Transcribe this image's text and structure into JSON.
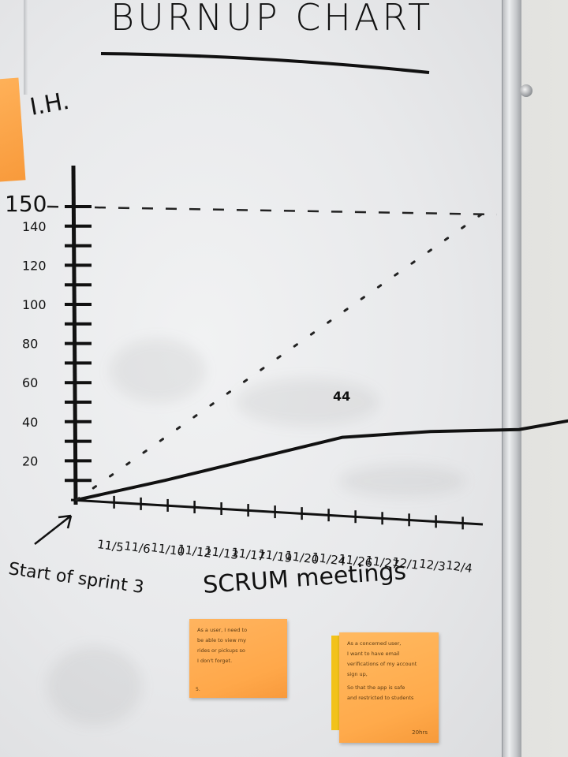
{
  "chart_data": {
    "type": "line",
    "title": "BURNUP CHART",
    "ylabel": "I.H.",
    "xlabel": "SCRUM meetings",
    "y_ticks": [
      "20",
      "40",
      "60",
      "80",
      "100",
      "120",
      "140",
      "150"
    ],
    "x_ticks": [
      "11/5",
      "11/6",
      "11/10",
      "11/12",
      "11/13",
      "11/17",
      "11/19",
      "11/20",
      "11/24",
      "11/26",
      "11/27",
      "12/1",
      "12/3",
      "12/4"
    ],
    "ylim": [
      0,
      150
    ],
    "scope_line": 150,
    "series": [
      {
        "name": "",
        "style": "solid",
        "x": [
          0,
          1,
          2,
          3,
          4,
          5,
          6,
          7,
          8,
          9
        ],
        "y": [
          0,
          10,
          21,
          32,
          35,
          36,
          44,
          44,
          42,
          44
        ]
      },
      {
        "name": "",
        "style": "dotted",
        "x": [
          0,
          13.5
        ],
        "y": [
          0,
          150
        ]
      }
    ],
    "end_label": "44"
  },
  "annotation": "Start of sprint 3",
  "stickies": [
    {
      "lines": [
        "As a user, I need to",
        "be able to view my",
        "rides or pickups so",
        "I don't forget."
      ],
      "footer": "5."
    },
    {
      "lines": [
        "As a concerned user,",
        "I want to have email",
        "verifications of my account",
        "sign up,",
        "So that the app is safe",
        "and restricted to students"
      ],
      "footer": "20hrs"
    }
  ]
}
